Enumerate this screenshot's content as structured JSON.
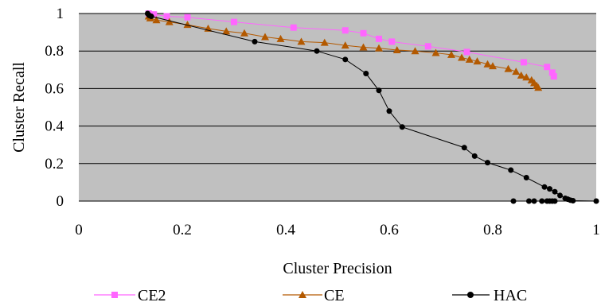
{
  "chart_data": {
    "type": "scatter",
    "xlabel": "Cluster Precision",
    "ylabel": "Cluster Recall",
    "xlim": [
      0,
      1
    ],
    "ylim": [
      0,
      1
    ],
    "x_ticks": [
      "0",
      "0.2",
      "0.4",
      "0.6",
      "0.8",
      "1"
    ],
    "y_ticks": [
      "0",
      "0.2",
      "0.4",
      "0.6",
      "0.8",
      "1"
    ],
    "grid": "horizontal",
    "plot_background": "#C0C0C0",
    "legend_position": "bottom",
    "series": [
      {
        "name": "CE2",
        "color": "#FF66FF",
        "marker": "square",
        "points": [
          [
            0.135,
            1.0
          ],
          [
            0.145,
            0.995
          ],
          [
            0.17,
            0.985
          ],
          [
            0.21,
            0.98
          ],
          [
            0.3,
            0.955
          ],
          [
            0.415,
            0.925
          ],
          [
            0.515,
            0.91
          ],
          [
            0.55,
            0.895
          ],
          [
            0.58,
            0.865
          ],
          [
            0.605,
            0.85
          ],
          [
            0.675,
            0.825
          ],
          [
            0.75,
            0.795
          ],
          [
            0.86,
            0.74
          ],
          [
            0.905,
            0.715
          ],
          [
            0.915,
            0.685
          ],
          [
            0.918,
            0.665
          ]
        ]
      },
      {
        "name": "CE",
        "color": "#B35900",
        "marker": "triangle",
        "points": [
          [
            0.135,
            0.985
          ],
          [
            0.138,
            0.975
          ],
          [
            0.15,
            0.965
          ],
          [
            0.175,
            0.955
          ],
          [
            0.21,
            0.94
          ],
          [
            0.25,
            0.92
          ],
          [
            0.285,
            0.905
          ],
          [
            0.32,
            0.895
          ],
          [
            0.36,
            0.875
          ],
          [
            0.39,
            0.865
          ],
          [
            0.43,
            0.85
          ],
          [
            0.475,
            0.845
          ],
          [
            0.515,
            0.83
          ],
          [
            0.55,
            0.82
          ],
          [
            0.58,
            0.815
          ],
          [
            0.615,
            0.805
          ],
          [
            0.65,
            0.8
          ],
          [
            0.69,
            0.79
          ],
          [
            0.72,
            0.78
          ],
          [
            0.74,
            0.765
          ],
          [
            0.755,
            0.755
          ],
          [
            0.77,
            0.745
          ],
          [
            0.79,
            0.73
          ],
          [
            0.8,
            0.72
          ],
          [
            0.83,
            0.705
          ],
          [
            0.845,
            0.69
          ],
          [
            0.855,
            0.67
          ],
          [
            0.865,
            0.66
          ],
          [
            0.875,
            0.645
          ],
          [
            0.88,
            0.63
          ],
          [
            0.885,
            0.615
          ],
          [
            0.888,
            0.605
          ]
        ]
      },
      {
        "name": "HAC",
        "color": "#000000",
        "marker": "circle",
        "points": [
          [
            0.133,
            1.0
          ],
          [
            0.136,
            0.99
          ],
          [
            0.14,
            0.985
          ],
          [
            0.34,
            0.85
          ],
          [
            0.46,
            0.8
          ],
          [
            0.515,
            0.755
          ],
          [
            0.555,
            0.68
          ],
          [
            0.58,
            0.59
          ],
          [
            0.6,
            0.48
          ],
          [
            0.625,
            0.395
          ],
          [
            0.745,
            0.285
          ],
          [
            0.765,
            0.24
          ],
          [
            0.79,
            0.205
          ],
          [
            0.835,
            0.165
          ],
          [
            0.865,
            0.125
          ],
          [
            0.9,
            0.075
          ],
          [
            0.91,
            0.065
          ],
          [
            0.92,
            0.05
          ],
          [
            0.93,
            0.03
          ],
          [
            0.94,
            0.015
          ],
          [
            0.945,
            0.01
          ],
          [
            0.95,
            0.005
          ],
          [
            0.955,
            0.002
          ],
          [
            0.84,
            0.0
          ],
          [
            0.87,
            0.0
          ],
          [
            0.88,
            0.0
          ],
          [
            0.895,
            0.0
          ],
          [
            0.905,
            0.0
          ],
          [
            0.91,
            0.0
          ],
          [
            0.915,
            0.0
          ],
          [
            0.92,
            0.0
          ],
          [
            1.0,
            0.0
          ]
        ]
      }
    ]
  }
}
